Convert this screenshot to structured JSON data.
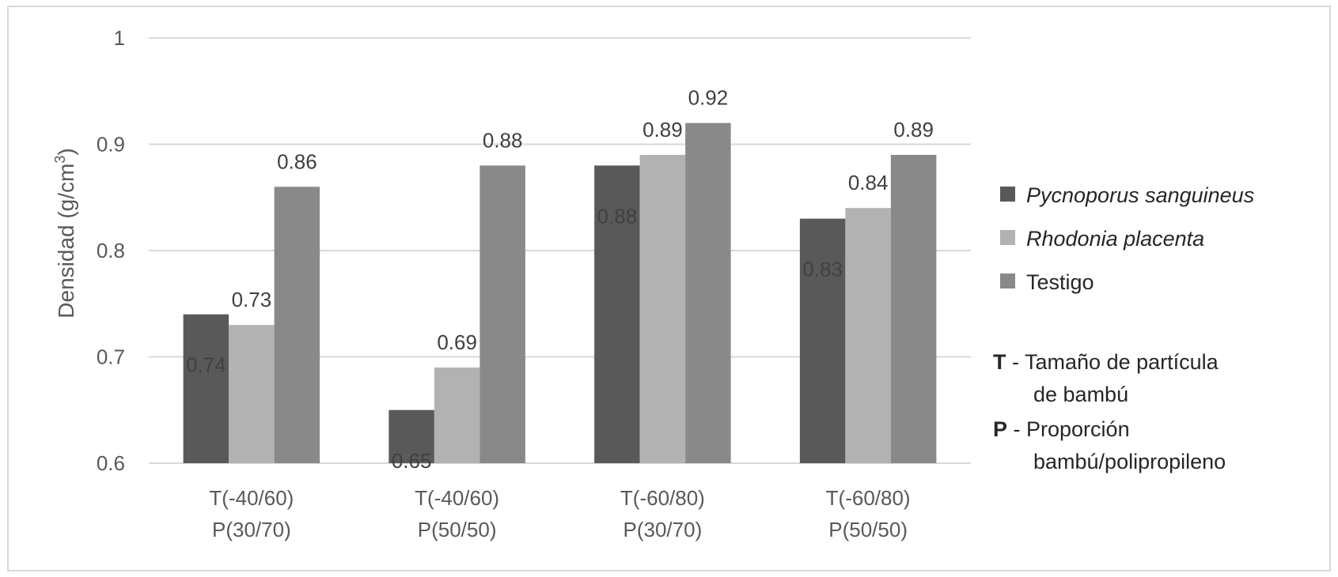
{
  "chart_data": {
    "type": "bar",
    "ylabel": "Densidad (g/cm",
    "ylabel_superscript": "3",
    "ylabel_close": ")",
    "ylim": [
      0.6,
      1
    ],
    "yticks": [
      {
        "value": 0.6,
        "label": "0.6"
      },
      {
        "value": 0.7,
        "label": "0.7"
      },
      {
        "value": 0.8,
        "label": "0.8"
      },
      {
        "value": 0.9,
        "label": "0.9"
      },
      {
        "value": 1,
        "label": "1"
      }
    ],
    "grid": true,
    "legend_position": "right",
    "categories": [
      {
        "line1": "T(-40/60)",
        "line2": "P(30/70)"
      },
      {
        "line1": "T(-40/60)",
        "line2": "P(50/50)"
      },
      {
        "line1": "T(-60/80)",
        "line2": "P(30/70)"
      },
      {
        "line1": "T(-60/80)",
        "line2": "P(50/50)"
      }
    ],
    "series": [
      {
        "name": "Pycnoporus sanguineus",
        "italic": true,
        "color": "#595959",
        "values": [
          0.74,
          0.65,
          0.88,
          0.83
        ],
        "labels": [
          "0.74",
          "0.65",
          "0.88",
          "0.83"
        ],
        "label_position": "inside"
      },
      {
        "name": "Rhodonia placenta",
        "italic": true,
        "color": "#b2b2b2",
        "values": [
          0.73,
          0.69,
          0.89,
          0.84
        ],
        "labels": [
          "0.73",
          "0.69",
          "0.89",
          "0.84"
        ],
        "label_position": "above"
      },
      {
        "name": "Testigo",
        "italic": false,
        "color": "#898989",
        "values": [
          0.86,
          0.88,
          0.92,
          0.89
        ],
        "labels": [
          "0.86",
          "0.88",
          "0.92",
          "0.89"
        ],
        "label_position": "above"
      }
    ],
    "notes": [
      {
        "key": "T",
        "sep": " -  ",
        "line1": "Tamaño de partícula",
        "line2": "de bambú"
      },
      {
        "key": "P",
        "sep": " - ",
        "line1": "Proporción",
        "line2": "bambú/polipropileno"
      }
    ]
  }
}
